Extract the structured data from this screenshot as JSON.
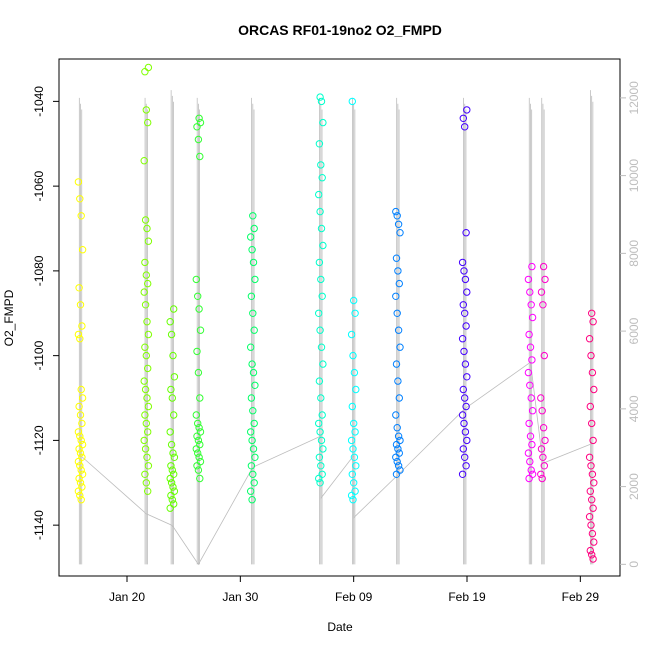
{
  "chart_data": {
    "type": "scatter",
    "title": "ORCAS RF01-19no2 O2_FMPD",
    "xlabel": "Date",
    "ylabel": "O2_FMPD",
    "x_ticks": [
      "Jan 20",
      "Jan 30",
      "Feb 09",
      "Feb 19",
      "Feb 29"
    ],
    "x_tick_days": [
      20,
      30,
      40,
      50,
      60
    ],
    "xlim_days": [
      14.0,
      63.5
    ],
    "ylim": [
      -1152,
      -1030
    ],
    "y_ticks": [
      -1140,
      -1120,
      -1100,
      -1080,
      -1060,
      -1040
    ],
    "y2_ticks": [
      0,
      2000,
      4000,
      6000,
      8000,
      10000,
      12000
    ],
    "y2lim": [
      -300,
      13000
    ],
    "y2_color": "#bdbdbd",
    "grid": false,
    "flights": [
      {
        "day": 15.9,
        "color": "#ffff00",
        "y": [
          -1059,
          -1063,
          -1067,
          -1075,
          -1084,
          -1088,
          -1093,
          -1095,
          -1096,
          -1108,
          -1110,
          -1112,
          -1114,
          -1116,
          -1118,
          -1119,
          -1120,
          -1121,
          -1122,
          -1123,
          -1124,
          -1125,
          -1126,
          -1127,
          -1128,
          -1129,
          -1130,
          -1131,
          -1132,
          -1133,
          -1134
        ]
      },
      {
        "day": 21.7,
        "color": "#80ff00",
        "y": [
          -1032,
          -1033,
          -1042,
          -1045,
          -1054,
          -1068,
          -1070,
          -1073,
          -1078,
          -1081,
          -1083,
          -1085,
          -1088,
          -1092,
          -1095,
          -1098,
          -1100,
          -1103,
          -1106,
          -1108,
          -1110,
          -1112,
          -1114,
          -1116,
          -1118,
          -1120,
          -1122,
          -1124,
          -1126,
          -1128,
          -1130,
          -1132
        ]
      },
      {
        "day": 24.0,
        "color": "#66ff00",
        "y": [
          -1089,
          -1092,
          -1095,
          -1100,
          -1105,
          -1108,
          -1110,
          -1114,
          -1118,
          -1121,
          -1123,
          -1124,
          -1126,
          -1127,
          -1128,
          -1129,
          -1130,
          -1131,
          -1132,
          -1133,
          -1134,
          -1135,
          -1136
        ]
      },
      {
        "day": 26.3,
        "color": "#33ff33",
        "y": [
          -1044,
          -1045,
          -1046,
          -1049,
          -1053,
          -1082,
          -1086,
          -1089,
          -1094,
          -1099,
          -1104,
          -1110,
          -1114,
          -1116,
          -1117,
          -1118,
          -1119,
          -1120,
          -1121,
          -1122,
          -1123,
          -1124,
          -1125,
          -1126,
          -1127,
          -1129
        ]
      },
      {
        "day": 31.1,
        "color": "#00ff66",
        "y": [
          -1067,
          -1070,
          -1072,
          -1075,
          -1078,
          -1082,
          -1086,
          -1090,
          -1094,
          -1098,
          -1102,
          -1104,
          -1107,
          -1110,
          -1113,
          -1116,
          -1118,
          -1120,
          -1122,
          -1124,
          -1126,
          -1128,
          -1130,
          -1132,
          -1134
        ]
      },
      {
        "day": 37.1,
        "color": "#00ffcc",
        "y": [
          -1039,
          -1040,
          -1045,
          -1050,
          -1055,
          -1058,
          -1062,
          -1066,
          -1070,
          -1074,
          -1078,
          -1082,
          -1086,
          -1090,
          -1094,
          -1098,
          -1102,
          -1106,
          -1110,
          -1114,
          -1116,
          -1118,
          -1120,
          -1122,
          -1124,
          -1126,
          -1128,
          -1129,
          -1130
        ]
      },
      {
        "day": 40.0,
        "color": "#00ffff",
        "y": [
          -1040,
          -1087,
          -1090,
          -1095,
          -1100,
          -1104,
          -1108,
          -1112,
          -1116,
          -1118,
          -1120,
          -1122,
          -1124,
          -1126,
          -1128,
          -1130,
          -1132,
          -1133,
          -1134
        ]
      },
      {
        "day": 43.9,
        "color": "#0080ff",
        "y": [
          -1066,
          -1067,
          -1069,
          -1071,
          -1077,
          -1080,
          -1083,
          -1086,
          -1090,
          -1094,
          -1098,
          -1102,
          -1106,
          -1110,
          -1114,
          -1117,
          -1119,
          -1120,
          -1121,
          -1122,
          -1123,
          -1124,
          -1125,
          -1126,
          -1127,
          -1128
        ]
      },
      {
        "day": 49.8,
        "color": "#4400ff",
        "y": [
          -1042,
          -1044,
          -1046,
          -1071,
          -1078,
          -1080,
          -1082,
          -1085,
          -1088,
          -1090,
          -1093,
          -1096,
          -1099,
          -1102,
          -1105,
          -1108,
          -1110,
          -1112,
          -1114,
          -1116,
          -1118,
          -1120,
          -1122,
          -1124,
          -1126,
          -1128
        ]
      },
      {
        "day": 55.6,
        "color": "#ff00ff",
        "y": [
          -1079,
          -1082,
          -1085,
          -1088,
          -1091,
          -1095,
          -1098,
          -1101,
          -1104,
          -1107,
          -1110,
          -1113,
          -1116,
          -1119,
          -1121,
          -1123,
          -1125,
          -1127,
          -1128,
          -1129
        ]
      },
      {
        "day": 56.7,
        "color": "#ff00cc",
        "y": [
          -1079,
          -1082,
          -1085,
          -1088,
          -1100,
          -1110,
          -1113,
          -1117,
          -1120,
          -1122,
          -1124,
          -1126,
          -1128,
          -1129
        ]
      },
      {
        "day": 61.0,
        "color": "#ff0080",
        "y": [
          -1090,
          -1092,
          -1096,
          -1100,
          -1104,
          -1108,
          -1112,
          -1116,
          -1120,
          -1124,
          -1126,
          -1128,
          -1130,
          -1132,
          -1134,
          -1136,
          -1138,
          -1140,
          -1142,
          -1144,
          -1146,
          -1147,
          -1148
        ]
      }
    ],
    "altitude_trace": {
      "color": "#bdbdbd",
      "segments": [
        {
          "day": 15.9,
          "min": 0,
          "max": 12000
        },
        {
          "day": 21.7,
          "min": 0,
          "max": 12000
        },
        {
          "day": 24.0,
          "min": 0,
          "max": 12200
        },
        {
          "day": 26.3,
          "min": 0,
          "max": 12000
        },
        {
          "day": 31.1,
          "min": 0,
          "max": 12000
        },
        {
          "day": 37.1,
          "min": 0,
          "max": 12000
        },
        {
          "day": 40.0,
          "min": 0,
          "max": 12000
        },
        {
          "day": 43.9,
          "min": 0,
          "max": 12000
        },
        {
          "day": 49.8,
          "min": 0,
          "max": 12000
        },
        {
          "day": 55.6,
          "min": 0,
          "max": 12000
        },
        {
          "day": 56.7,
          "min": 0,
          "max": 12000
        },
        {
          "day": 61.0,
          "min": 0,
          "max": 12200
        }
      ],
      "ferry_path": [
        [
          15.9,
          2800
        ],
        [
          21.7,
          1300
        ],
        [
          24.0,
          1000
        ],
        [
          26.3,
          0
        ],
        [
          31.1,
          2500
        ],
        [
          37.1,
          3300
        ],
        [
          37.1,
          1700
        ],
        [
          40.0,
          2800
        ],
        [
          40.0,
          1200
        ],
        [
          43.9,
          2300
        ],
        [
          49.8,
          4000
        ],
        [
          55.6,
          5200
        ],
        [
          56.7,
          2600
        ],
        [
          61.0,
          3100
        ]
      ]
    }
  }
}
